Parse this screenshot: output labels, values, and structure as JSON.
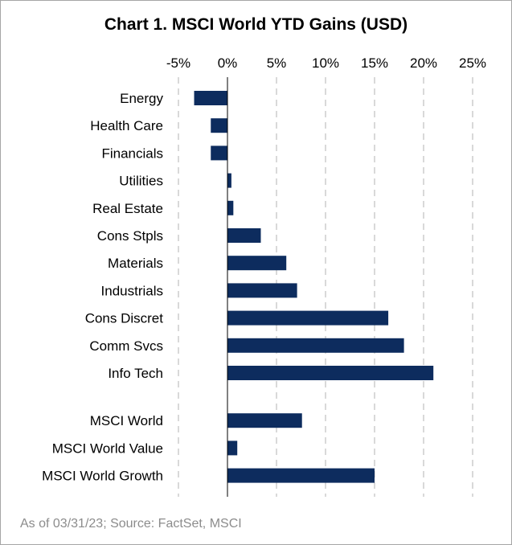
{
  "chart_data": {
    "type": "bar",
    "orientation": "horizontal",
    "title": "Chart 1. MSCI World YTD Gains (USD)",
    "categories": [
      "Energy",
      "Health Care",
      "Financials",
      "Utilities",
      "Real Estate",
      "Cons Stpls",
      "Materials",
      "Industrials",
      "Cons Discret",
      "Comm Svcs",
      "Info Tech",
      "MSCI World ",
      "MSCI World Value",
      "MSCI World Growth"
    ],
    "values": [
      -3.4,
      -1.7,
      -1.7,
      0.4,
      0.6,
      3.4,
      6.0,
      7.1,
      16.4,
      18.0,
      21.0,
      7.6,
      1.0,
      15.0
    ],
    "group_gap_after_index": 10,
    "xlim": [
      -5,
      25
    ],
    "xticks": [
      -5,
      0,
      5,
      10,
      15,
      20,
      25
    ],
    "xtick_labels": [
      "-5%",
      "0%",
      "5%",
      "10%",
      "15%",
      "20%",
      "25%"
    ],
    "xaxis_position": "top",
    "grid": "vertical dashed",
    "legend": "none",
    "bar_color": "#0d2c5e",
    "grid_color": "#d9d9d9",
    "axis_color": "#000000"
  },
  "source_note": "As of 03/31/23; Source: FactSet, MSCI"
}
